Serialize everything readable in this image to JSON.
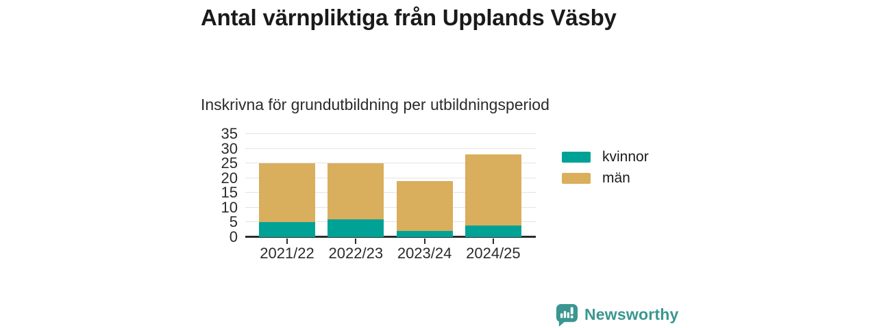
{
  "header": {
    "title": "Antal värnpliktiga från Upplands Väsby",
    "subtitle": "Inskrivna för grundutbildning per utbildningsperiod"
  },
  "chart_data": {
    "type": "bar",
    "stacked": true,
    "title": "Antal värnpliktiga från Upplands Väsby",
    "subtitle": "Inskrivna för grundutbildning per utbildningsperiod",
    "categories": [
      "2021/22",
      "2022/23",
      "2023/24",
      "2024/25"
    ],
    "series": [
      {
        "name": "kvinnor",
        "color": "#00a296",
        "values": [
          5,
          6,
          2,
          4
        ]
      },
      {
        "name": "män",
        "color": "#d9ae5c",
        "values": [
          20,
          19,
          17,
          24
        ]
      }
    ],
    "totals": [
      25,
      25,
      19,
      28
    ],
    "xlabel": "",
    "ylabel": "",
    "ylim": [
      0,
      35
    ],
    "yticks": [
      0,
      5,
      10,
      15,
      20,
      25,
      30,
      35
    ],
    "grid": true,
    "legend_position": "right"
  },
  "branding": {
    "logo_text": "Newsworthy",
    "logo_icon": "newsworthy-speech-bubble-chart-icon",
    "logo_color": "#3a9690"
  },
  "colors": {
    "background": "#ffffff",
    "title_text": "#1a1a1a",
    "axis_text": "#2b2b2b",
    "axis_line": "#2b2b2b",
    "gridline": "#e3e3e3",
    "kvinnor": "#00a296",
    "man": "#d9ae5c"
  }
}
